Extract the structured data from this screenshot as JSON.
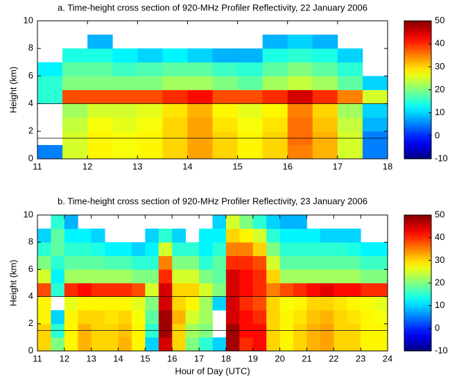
{
  "chart_data": [
    {
      "type": "heatmap",
      "title": "a. Time-height cross section of 920-MHz Profiler Reflectivity, 22 January 2006",
      "ylabel": "Height (km)",
      "xbins": [
        11,
        11.5,
        12,
        12.5,
        13,
        13.5,
        14,
        14.5,
        15,
        15.5,
        16,
        16.5,
        17,
        17.5,
        18
      ],
      "ybins": [
        0,
        1,
        2,
        3,
        4,
        5,
        6,
        7,
        8,
        9,
        10
      ],
      "z": [
        [
          5,
          null,
          null,
          null,
          15,
          15,
          12,
          null,
          null,
          null
        ],
        [
          25,
          25,
          24,
          22,
          38,
          20,
          18,
          14,
          null,
          null
        ],
        [
          28,
          28,
          27,
          25,
          38,
          20,
          18,
          14,
          8,
          null
        ],
        [
          27,
          27,
          26,
          25,
          38,
          20,
          16,
          12,
          null,
          null
        ],
        [
          28,
          28,
          27,
          26,
          38,
          20,
          17,
          10,
          null,
          null
        ],
        [
          30,
          30,
          30,
          29,
          40,
          22,
          18,
          12,
          null,
          null
        ],
        [
          33,
          33,
          33,
          32,
          42,
          22,
          18,
          10,
          null,
          null
        ],
        [
          30,
          30,
          29,
          28,
          38,
          20,
          16,
          8,
          null,
          null
        ],
        [
          28,
          28,
          27,
          26,
          38,
          18,
          15,
          8,
          null,
          null
        ],
        [
          30,
          30,
          29,
          28,
          40,
          22,
          18,
          14,
          8,
          null
        ],
        [
          35,
          36,
          36,
          35,
          45,
          24,
          20,
          15,
          10,
          null
        ],
        [
          32,
          32,
          31,
          30,
          40,
          22,
          18,
          14,
          8,
          null
        ],
        [
          25,
          25,
          24,
          22,
          35,
          18,
          15,
          10,
          null,
          null
        ],
        [
          5,
          5,
          8,
          10,
          25,
          10,
          null,
          null,
          null,
          null
        ]
      ],
      "xlim": [
        11,
        18
      ],
      "xticks": [
        11,
        12,
        13,
        14,
        15,
        16,
        17,
        18
      ],
      "ylim": [
        0,
        10
      ],
      "yticks": [
        0,
        2,
        4,
        6,
        8,
        10
      ],
      "clim": [
        -10,
        50
      ],
      "cticks": [
        -10,
        0,
        10,
        20,
        30,
        40,
        50
      ],
      "colormap": "jet",
      "hlines": [
        1.5,
        4
      ],
      "hline_color": "#000000"
    },
    {
      "type": "heatmap",
      "title": "b. Time-height cross section of 920-MHz Profiler Reflectivity, 23 January 2006",
      "xlabel": "Hour of Day (UTC)",
      "ylabel": "Height (km)",
      "xbins": [
        11,
        11.5,
        12,
        12.5,
        13,
        13.5,
        14,
        14.5,
        15,
        15.5,
        16,
        16.5,
        17,
        17.5,
        18,
        18.5,
        19,
        19.5,
        20,
        20.5,
        21,
        21.5,
        22,
        22.5,
        23,
        23.5,
        24
      ],
      "ybins": [
        0,
        1,
        2,
        3,
        4,
        5,
        6,
        7,
        8,
        9,
        10
      ],
      "z": [
        [
          30,
          30,
          28,
          28,
          38,
          25,
          20,
          15,
          10,
          null
        ],
        [
          20,
          15,
          10,
          null,
          15,
          12,
          15,
          18,
          18,
          15
        ],
        [
          28,
          28,
          28,
          26,
          40,
          22,
          18,
          15,
          12,
          8
        ],
        [
          32,
          32,
          30,
          28,
          42,
          22,
          18,
          15,
          12,
          null
        ],
        [
          30,
          30,
          30,
          28,
          40,
          22,
          18,
          14,
          10,
          null
        ],
        [
          30,
          30,
          29,
          28,
          40,
          22,
          17,
          12,
          null,
          null
        ],
        [
          32,
          31,
          30,
          28,
          40,
          22,
          17,
          12,
          null,
          null
        ],
        [
          28,
          28,
          27,
          26,
          38,
          20,
          15,
          10,
          null,
          null
        ],
        [
          10,
          15,
          18,
          20,
          25,
          20,
          15,
          12,
          10,
          null
        ],
        [
          45,
          48,
          48,
          45,
          45,
          40,
          35,
          25,
          15,
          null
        ],
        [
          30,
          30,
          32,
          30,
          30,
          25,
          20,
          15,
          10,
          null
        ],
        [
          20,
          22,
          25,
          28,
          30,
          25,
          20,
          15,
          null,
          null
        ],
        [
          15,
          20,
          22,
          22,
          25,
          20,
          15,
          12,
          12,
          null
        ],
        [
          10,
          null,
          null,
          10,
          20,
          18,
          18,
          15,
          12,
          10
        ],
        [
          48,
          48,
          45,
          45,
          45,
          45,
          40,
          35,
          30,
          25
        ],
        [
          40,
          42,
          42,
          40,
          42,
          42,
          40,
          35,
          28,
          20
        ],
        [
          42,
          42,
          40,
          38,
          40,
          40,
          38,
          30,
          25,
          15
        ],
        [
          30,
          30,
          30,
          30,
          35,
          30,
          25,
          20,
          15,
          10
        ],
        [
          28,
          28,
          28,
          27,
          38,
          22,
          18,
          15,
          12,
          8
        ],
        [
          30,
          30,
          29,
          28,
          40,
          22,
          18,
          15,
          12,
          8
        ],
        [
          32,
          32,
          31,
          30,
          42,
          22,
          18,
          15,
          12,
          null
        ],
        [
          33,
          33,
          32,
          30,
          44,
          22,
          18,
          15,
          10,
          null
        ],
        [
          30,
          30,
          30,
          29,
          42,
          22,
          18,
          15,
          10,
          null
        ],
        [
          30,
          30,
          29,
          28,
          42,
          22,
          18,
          14,
          10,
          null
        ],
        [
          28,
          28,
          28,
          27,
          40,
          20,
          16,
          12,
          null,
          null
        ],
        [
          28,
          28,
          27,
          26,
          40,
          20,
          16,
          12,
          null,
          null
        ]
      ],
      "xlim": [
        11,
        24
      ],
      "xticks": [
        11,
        12,
        13,
        14,
        15,
        16,
        17,
        18,
        19,
        20,
        21,
        22,
        23,
        24
      ],
      "ylim": [
        0,
        10
      ],
      "yticks": [
        0,
        2,
        4,
        6,
        8,
        10
      ],
      "clim": [
        -10,
        50
      ],
      "cticks": [
        -10,
        0,
        10,
        20,
        30,
        40,
        50
      ],
      "colormap": "jet",
      "hlines": [
        1.5,
        4
      ],
      "hline_color": "#000000"
    }
  ]
}
